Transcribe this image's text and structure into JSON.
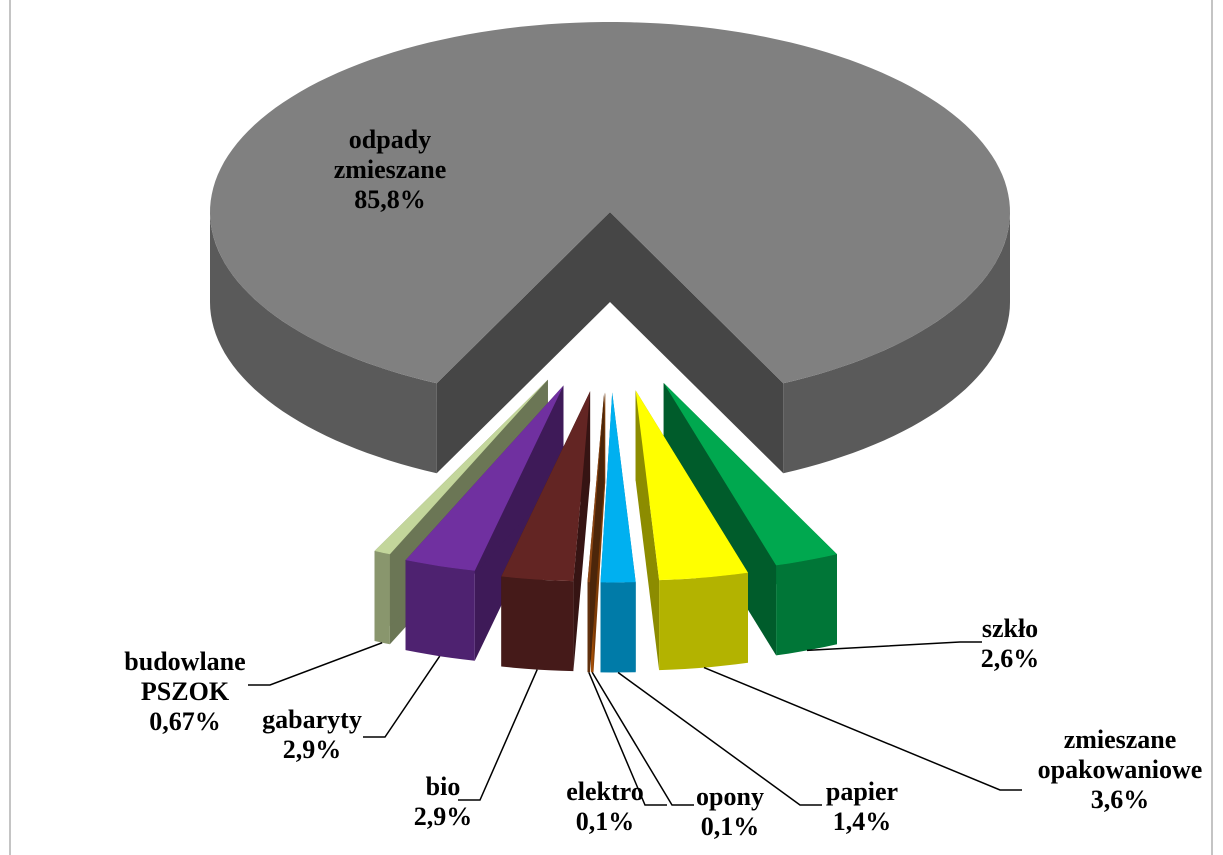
{
  "chart_data": {
    "type": "pie3d",
    "categories": [
      "odpady zmieszane",
      "szkło",
      "zmieszane opakowaniowe",
      "papier",
      "opony",
      "elektro",
      "bio",
      "gabaryty",
      "budowlane PSZOK"
    ],
    "values": [
      85.8,
      2.6,
      3.6,
      1.4,
      0.1,
      0.1,
      2.9,
      2.9,
      0.67
    ],
    "value_labels": [
      "85,8%",
      "2,6%",
      "3,6%",
      "1,4%",
      "0,1%",
      "0,1%",
      "2,9%",
      "2,9%",
      "0,67%"
    ],
    "colors": [
      "#808080",
      "#00a84f",
      "#ffff00",
      "#00b0f0",
      "#e46c0a",
      "#8b4513",
      "#632523",
      "#7030a0",
      "#c3d69b"
    ]
  }
}
